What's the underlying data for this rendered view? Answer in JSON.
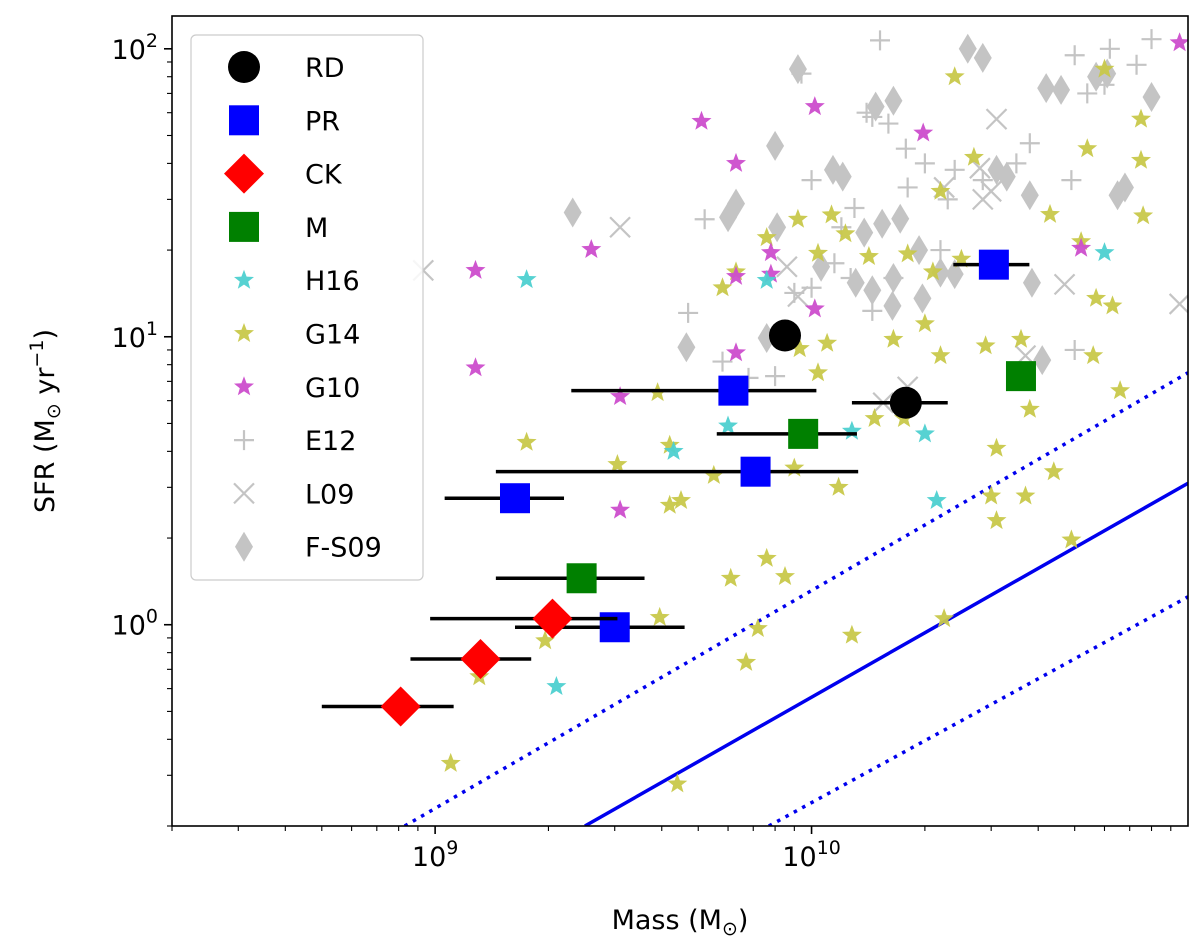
{
  "chart_data": {
    "type": "scatter",
    "xscale": "log",
    "yscale": "log",
    "xlim": [
      200000000,
      100000000000
    ],
    "ylim": [
      0.2,
      130
    ],
    "xlabel": "Mass (M",
    "xlabel_sub": "⊙",
    "xlabel_end": ")",
    "ylabel": "SFR (M",
    "ylabel_sub": "⊙",
    "ylabel_mid": " yr",
    "ylabel_sup": "−1",
    "ylabel_end": ")",
    "x_ticks": [
      {
        "value": 1000000000,
        "base": "10",
        "exp": "9"
      },
      {
        "value": 10000000000,
        "base": "10",
        "exp": "10"
      }
    ],
    "y_ticks": [
      {
        "value": 1,
        "label": "10",
        "exp": "0",
        "mant": "1.0"
      },
      {
        "value": 10,
        "label": "10",
        "exp": "1"
      },
      {
        "value": 100,
        "label": "10",
        "exp": "2"
      }
    ],
    "lines": [
      {
        "name": "main-sequence",
        "style": "solid",
        "color": "#0000ee",
        "points": [
          [
            2500000000,
            0.2
          ],
          [
            100000000000,
            3.1
          ]
        ]
      },
      {
        "name": "main-sequence-upper",
        "style": "dotted",
        "color": "#0000ee",
        "points": [
          [
            830000000,
            0.2
          ],
          [
            100000000000,
            7.5
          ]
        ]
      },
      {
        "name": "main-sequence-lower",
        "style": "dotted",
        "color": "#0000ee",
        "points": [
          [
            7700000000,
            0.2
          ],
          [
            100000000000,
            1.25
          ]
        ]
      }
    ],
    "legend": {
      "position": "top-left",
      "entries": [
        {
          "label": "RD",
          "marker": "circle",
          "color": "#000000"
        },
        {
          "label": "PR",
          "marker": "square",
          "color": "#0000ff"
        },
        {
          "label": "CK",
          "marker": "diamond",
          "color": "#ff0000"
        },
        {
          "label": "M",
          "marker": "square",
          "color": "#008000"
        },
        {
          "label": "H16",
          "marker": "star",
          "color": "#4dd0d0"
        },
        {
          "label": "G14",
          "marker": "star",
          "color": "#c8c84a"
        },
        {
          "label": "G10",
          "marker": "star",
          "color": "#cc4dcc"
        },
        {
          "label": "E12",
          "marker": "plus",
          "color": "#c4c4c4"
        },
        {
          "label": "L09",
          "marker": "x",
          "color": "#c4c4c4"
        },
        {
          "label": "F-S09",
          "marker": "thin-diamond",
          "color": "#c4c4c4"
        }
      ]
    },
    "series": [
      {
        "name": "RD",
        "marker": "circle",
        "color": "#000000",
        "points": [
          {
            "x": 8500000000,
            "y": 10.1
          },
          {
            "x": 17800000000,
            "y": 5.9,
            "xerr": [
              12800000000,
              23000000000
            ]
          }
        ]
      },
      {
        "name": "PR",
        "marker": "square",
        "color": "#0000ff",
        "points": [
          {
            "x": 30500000000,
            "y": 17.8,
            "xerr": [
              23800000000,
              37900000000
            ]
          },
          {
            "x": 6200000000,
            "y": 6.5,
            "xerr": [
              2300000000,
              10300000000
            ]
          },
          {
            "x": 7100000000,
            "y": 3.4,
            "xerr": [
              1450000000,
              13300000000
            ]
          },
          {
            "x": 1630000000,
            "y": 2.75,
            "xerr": [
              1060000000,
              2200000000
            ]
          },
          {
            "x": 3000000000,
            "y": 0.98,
            "xerr": [
              1630000000,
              4600000000
            ]
          }
        ]
      },
      {
        "name": "CK",
        "marker": "diamond",
        "color": "#ff0000",
        "points": [
          {
            "x": 2050000000,
            "y": 1.05,
            "xerr": [
              970000000,
              3050000000
            ]
          },
          {
            "x": 1320000000,
            "y": 0.76,
            "xerr": [
              860000000,
              1800000000
            ]
          },
          {
            "x": 810000000,
            "y": 0.52,
            "xerr": [
              500000000,
              1120000000
            ]
          }
        ]
      },
      {
        "name": "M",
        "marker": "square",
        "color": "#008000",
        "points": [
          {
            "x": 36000000000,
            "y": 7.3
          },
          {
            "x": 9500000000,
            "y": 4.6,
            "xerr": [
              5600000000,
              13200000000
            ]
          },
          {
            "x": 2450000000,
            "y": 1.45,
            "xerr": [
              1450000000,
              3600000000
            ]
          }
        ]
      },
      {
        "name": "H16",
        "marker": "star",
        "color": "#4dd0d0",
        "points": [
          {
            "x": 1750000000,
            "y": 15.8
          },
          {
            "x": 7600000000,
            "y": 15.7
          },
          {
            "x": 6000000000,
            "y": 4.9
          },
          {
            "x": 4300000000,
            "y": 4.0
          },
          {
            "x": 12800000000,
            "y": 4.7
          },
          {
            "x": 20000000000,
            "y": 4.6
          },
          {
            "x": 21500000000,
            "y": 2.7
          },
          {
            "x": 2100000000,
            "y": 0.61
          },
          {
            "x": 60000000000,
            "y": 19.6
          }
        ]
      },
      {
        "name": "G14",
        "marker": "star",
        "color": "#c8c84a",
        "points": [
          {
            "x": 24000000000,
            "y": 80
          },
          {
            "x": 60000000000,
            "y": 85
          },
          {
            "x": 75000000000,
            "y": 57
          },
          {
            "x": 54000000000,
            "y": 45
          },
          {
            "x": 75000000000,
            "y": 41
          },
          {
            "x": 27000000000,
            "y": 42
          },
          {
            "x": 22000000000,
            "y": 32
          },
          {
            "x": 9200000000,
            "y": 25.6
          },
          {
            "x": 11300000000,
            "y": 26.5
          },
          {
            "x": 6300000000,
            "y": 16.8
          },
          {
            "x": 7600000000,
            "y": 22.1
          },
          {
            "x": 5800000000,
            "y": 14.8
          },
          {
            "x": 10400000000,
            "y": 19.5
          },
          {
            "x": 12300000000,
            "y": 22.8
          },
          {
            "x": 14200000000,
            "y": 19.0
          },
          {
            "x": 18000000000,
            "y": 19.4
          },
          {
            "x": 21000000000,
            "y": 16.8
          },
          {
            "x": 25000000000,
            "y": 18.6
          },
          {
            "x": 43000000000,
            "y": 26.6
          },
          {
            "x": 76000000000,
            "y": 26.3
          },
          {
            "x": 20000000000,
            "y": 11.1
          },
          {
            "x": 16500000000,
            "y": 9.8
          },
          {
            "x": 11000000000,
            "y": 9.5
          },
          {
            "x": 9300000000,
            "y": 9.1
          },
          {
            "x": 10400000000,
            "y": 7.5
          },
          {
            "x": 3900000000,
            "y": 6.4
          },
          {
            "x": 6300000000,
            "y": 6.4
          },
          {
            "x": 22000000000,
            "y": 8.6
          },
          {
            "x": 29000000000,
            "y": 9.3
          },
          {
            "x": 36000000000,
            "y": 9.8
          },
          {
            "x": 56000000000,
            "y": 8.6
          },
          {
            "x": 66000000000,
            "y": 6.5
          },
          {
            "x": 14700000000,
            "y": 5.2
          },
          {
            "x": 17600000000,
            "y": 5.2
          },
          {
            "x": 38000000000,
            "y": 5.6
          },
          {
            "x": 9000000000,
            "y": 3.5
          },
          {
            "x": 5500000000,
            "y": 3.3
          },
          {
            "x": 3050000000,
            "y": 3.6
          },
          {
            "x": 4200000000,
            "y": 4.2
          },
          {
            "x": 1750000000,
            "y": 4.3
          },
          {
            "x": 11800000000,
            "y": 3.0
          },
          {
            "x": 31000000000,
            "y": 4.1
          },
          {
            "x": 44000000000,
            "y": 3.4
          },
          {
            "x": 4200000000,
            "y": 2.6
          },
          {
            "x": 4500000000,
            "y": 2.7
          },
          {
            "x": 30000000000,
            "y": 2.8
          },
          {
            "x": 37000000000,
            "y": 2.8
          },
          {
            "x": 31000000000,
            "y": 2.3
          },
          {
            "x": 6100000000,
            "y": 1.45
          },
          {
            "x": 7600000000,
            "y": 1.7
          },
          {
            "x": 8500000000,
            "y": 1.47
          },
          {
            "x": 1960000000,
            "y": 0.88
          },
          {
            "x": 3950000000,
            "y": 1.06
          },
          {
            "x": 7200000000,
            "y": 0.97
          },
          {
            "x": 6700000000,
            "y": 0.74
          },
          {
            "x": 12800000000,
            "y": 0.92
          },
          {
            "x": 22500000000,
            "y": 1.05
          },
          {
            "x": 49000000000,
            "y": 1.97
          },
          {
            "x": 1310000000,
            "y": 0.66
          },
          {
            "x": 1100000000,
            "y": 0.33
          },
          {
            "x": 4400000000,
            "y": 0.28
          },
          {
            "x": 57000000000,
            "y": 13.6
          },
          {
            "x": 63000000000,
            "y": 12.8
          },
          {
            "x": 52000000000,
            "y": 21.4
          }
        ]
      },
      {
        "name": "G10",
        "marker": "star",
        "color": "#cc4dcc",
        "points": [
          {
            "x": 95000000000,
            "y": 105
          },
          {
            "x": 10200000000,
            "y": 63
          },
          {
            "x": 5100000000,
            "y": 56
          },
          {
            "x": 19800000000,
            "y": 51
          },
          {
            "x": 6300000000,
            "y": 40
          },
          {
            "x": 2600000000,
            "y": 20.1
          },
          {
            "x": 1280000000,
            "y": 17.0
          },
          {
            "x": 7800000000,
            "y": 19.6
          },
          {
            "x": 6300000000,
            "y": 16.2
          },
          {
            "x": 7800000000,
            "y": 16.5
          },
          {
            "x": 10200000000,
            "y": 12.5
          },
          {
            "x": 6300000000,
            "y": 8.8
          },
          {
            "x": 1280000000,
            "y": 7.8
          },
          {
            "x": 3100000000,
            "y": 6.2
          },
          {
            "x": 3100000000,
            "y": 2.5
          },
          {
            "x": 52000000000,
            "y": 20.3
          }
        ]
      },
      {
        "name": "E12",
        "marker": "plus",
        "color": "#c4c4c4",
        "points": [
          {
            "x": 15200000000,
            "y": 107
          },
          {
            "x": 80000000000,
            "y": 108
          },
          {
            "x": 62000000000,
            "y": 100
          },
          {
            "x": 50000000000,
            "y": 95
          },
          {
            "x": 9400000000,
            "y": 82
          },
          {
            "x": 60000000000,
            "y": 75
          },
          {
            "x": 73000000000,
            "y": 88
          },
          {
            "x": 16000000000,
            "y": 55
          },
          {
            "x": 14000000000,
            "y": 60
          },
          {
            "x": 54000000000,
            "y": 70
          },
          {
            "x": 14500000000,
            "y": 58
          },
          {
            "x": 38000000000,
            "y": 47
          },
          {
            "x": 17800000000,
            "y": 45
          },
          {
            "x": 20000000000,
            "y": 40
          },
          {
            "x": 24000000000,
            "y": 38
          },
          {
            "x": 35000000000,
            "y": 40
          },
          {
            "x": 49000000000,
            "y": 35
          },
          {
            "x": 10000000000,
            "y": 35
          },
          {
            "x": 18000000000,
            "y": 33
          },
          {
            "x": 28500000000,
            "y": 35
          },
          {
            "x": 23000000000,
            "y": 30
          },
          {
            "x": 13000000000,
            "y": 28
          },
          {
            "x": 12000000000,
            "y": 24
          },
          {
            "x": 5200000000,
            "y": 25.6
          },
          {
            "x": 22000000000,
            "y": 20
          },
          {
            "x": 11500000000,
            "y": 18
          },
          {
            "x": 12700000000,
            "y": 16
          },
          {
            "x": 10000000000,
            "y": 14.8
          },
          {
            "x": 9000000000,
            "y": 14.2
          },
          {
            "x": 16500000000,
            "y": 16
          },
          {
            "x": 4700000000,
            "y": 12.1
          },
          {
            "x": 14500000000,
            "y": 12.3
          },
          {
            "x": 5800000000,
            "y": 8.2
          },
          {
            "x": 8000000000,
            "y": 7.3
          },
          {
            "x": 6800000000,
            "y": 7.2
          },
          {
            "x": 50000000000,
            "y": 9
          }
        ]
      },
      {
        "name": "L09",
        "marker": "x",
        "color": "#c4c4c4",
        "points": [
          {
            "x": 930000000,
            "y": 17.0
          },
          {
            "x": 3100000000,
            "y": 24.0
          },
          {
            "x": 31000000000,
            "y": 57
          },
          {
            "x": 47000000000,
            "y": 15.2
          },
          {
            "x": 95000000000,
            "y": 13.0
          },
          {
            "x": 28500000000,
            "y": 30
          },
          {
            "x": 30000000000,
            "y": 32
          },
          {
            "x": 28000000000,
            "y": 38.5
          },
          {
            "x": 22500000000,
            "y": 33
          },
          {
            "x": 9200000000,
            "y": 13.8
          },
          {
            "x": 8600000000,
            "y": 17.5
          },
          {
            "x": 15500000000,
            "y": 5.9
          },
          {
            "x": 18000000000,
            "y": 6.7
          },
          {
            "x": 37000000000,
            "y": 8.6
          }
        ]
      },
      {
        "name": "F-S09",
        "marker": "thin-diamond",
        "color": "#c4c4c4",
        "points": [
          {
            "x": 26000000000,
            "y": 100
          },
          {
            "x": 28500000000,
            "y": 93
          },
          {
            "x": 9200000000,
            "y": 85
          },
          {
            "x": 42000000000,
            "y": 73
          },
          {
            "x": 46000000000,
            "y": 72
          },
          {
            "x": 57000000000,
            "y": 80
          },
          {
            "x": 61000000000,
            "y": 82
          },
          {
            "x": 80000000000,
            "y": 68
          },
          {
            "x": 14800000000,
            "y": 63
          },
          {
            "x": 16500000000,
            "y": 66
          },
          {
            "x": 8000000000,
            "y": 46
          },
          {
            "x": 11400000000,
            "y": 38
          },
          {
            "x": 12100000000,
            "y": 36
          },
          {
            "x": 31000000000,
            "y": 38
          },
          {
            "x": 33000000000,
            "y": 36
          },
          {
            "x": 38000000000,
            "y": 31
          },
          {
            "x": 65000000000,
            "y": 31
          },
          {
            "x": 68000000000,
            "y": 33
          },
          {
            "x": 2320000000,
            "y": 27
          },
          {
            "x": 6000000000,
            "y": 26
          },
          {
            "x": 6300000000,
            "y": 29
          },
          {
            "x": 8100000000,
            "y": 24
          },
          {
            "x": 13800000000,
            "y": 23
          },
          {
            "x": 15400000000,
            "y": 24.7
          },
          {
            "x": 17200000000,
            "y": 25.7
          },
          {
            "x": 19300000000,
            "y": 20
          },
          {
            "x": 22000000000,
            "y": 16.7
          },
          {
            "x": 10600000000,
            "y": 17.5
          },
          {
            "x": 13100000000,
            "y": 15.4
          },
          {
            "x": 14500000000,
            "y": 14.5
          },
          {
            "x": 16400000000,
            "y": 12.8
          },
          {
            "x": 19700000000,
            "y": 13.6
          },
          {
            "x": 16500000000,
            "y": 16
          },
          {
            "x": 24000000000,
            "y": 16.5
          },
          {
            "x": 38500000000,
            "y": 15.4
          },
          {
            "x": 4650000000,
            "y": 9.2
          },
          {
            "x": 7600000000,
            "y": 9.9
          },
          {
            "x": 41000000000,
            "y": 8.3
          }
        ]
      }
    ]
  }
}
